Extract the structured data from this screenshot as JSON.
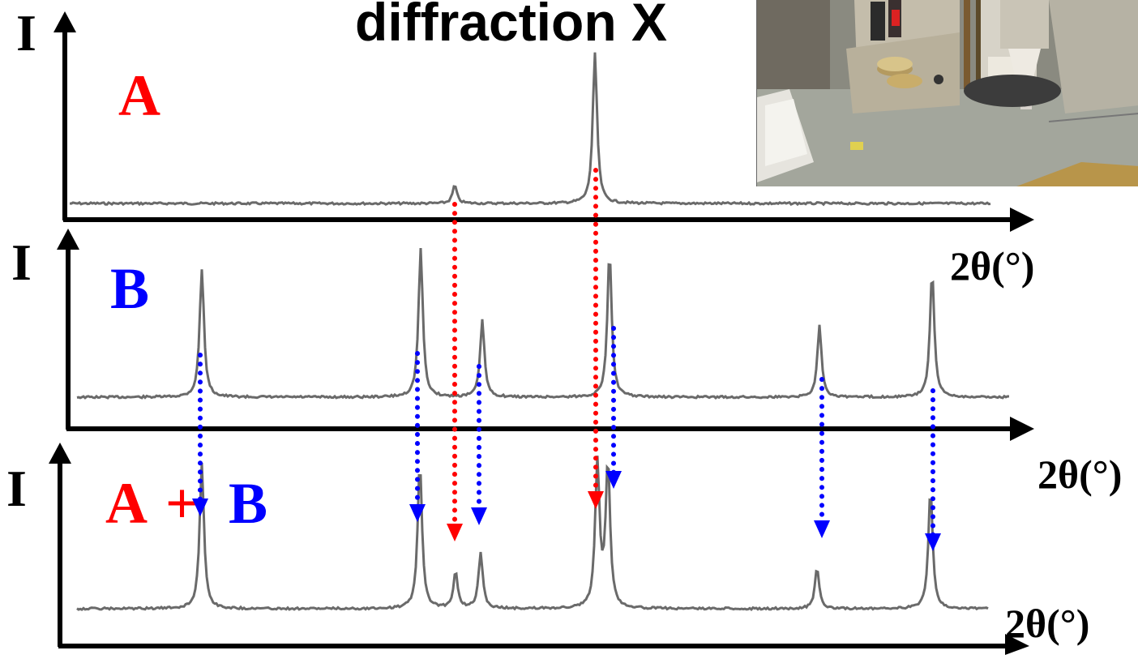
{
  "title": "diffraction X",
  "panels": [
    {
      "id": "A",
      "label": "A",
      "y_label": "I",
      "x_label": "2θ(°)",
      "peaks": [
        {
          "position": 561,
          "height": 0.12
        },
        {
          "position": 734,
          "height": 1.0
        }
      ]
    },
    {
      "id": "B",
      "label": "B",
      "y_label": "I",
      "x_label": "2θ(°)",
      "peaks": [
        {
          "position": 249,
          "height": 0.72
        },
        {
          "position": 519,
          "height": 0.83
        },
        {
          "position": 595,
          "height": 0.43
        },
        {
          "position": 752,
          "height": 0.82
        },
        {
          "position": 1011,
          "height": 0.4
        },
        {
          "position": 1150,
          "height": 0.7
        }
      ]
    },
    {
      "id": "AB",
      "label_a": "A",
      "label_plus": "+",
      "label_b": "B",
      "y_label": "I",
      "x_label": "2θ(°)",
      "peaks": [
        {
          "position": 249,
          "height": 0.97
        },
        {
          "position": 518,
          "height": 0.97
        },
        {
          "position": 562,
          "height": 0.24
        },
        {
          "position": 593,
          "height": 0.37
        },
        {
          "position": 737,
          "height": 0.97
        },
        {
          "position": 750,
          "height": 0.97
        },
        {
          "position": 1008,
          "height": 0.27
        },
        {
          "position": 1148,
          "height": 0.79
        }
      ]
    }
  ],
  "arrows": {
    "red": [
      561,
      735
    ],
    "blue": [
      247,
      515,
      591,
      757,
      1014,
      1151
    ]
  },
  "colors": {
    "red": "#ff0000",
    "blue": "#0000ff",
    "axis": "#000000",
    "trace": "#6a6a6a"
  }
}
